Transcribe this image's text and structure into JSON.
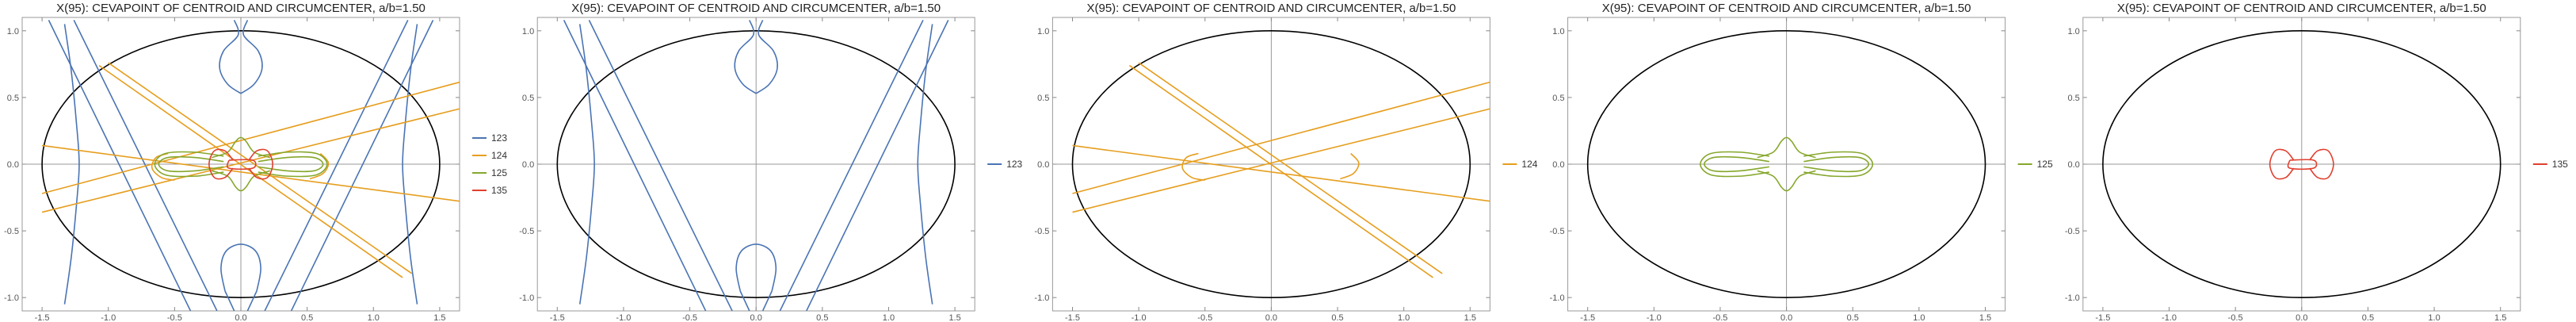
{
  "colors": {
    "123": "#4a74b4",
    "124": "#e69e1e",
    "125": "#86a72c",
    "135": "#e0402f",
    "ellipse": "#000000",
    "axis": "#999999"
  },
  "chart_data": [
    {
      "type": "line",
      "title": "X(95): CEVAPOINT OF CENTROID AND CIRCUMCENTER, a/b=1.50",
      "xlim": [
        -1.65,
        1.65
      ],
      "ylim": [
        -1.1,
        1.1
      ],
      "xticks": [
        "-1.5",
        "-1.0",
        "-0.5",
        "0.0",
        "0.5",
        "1.0",
        "1.5"
      ],
      "yticks": [
        "-1.0",
        "-0.5",
        "0.0",
        "0.5",
        "1.0"
      ],
      "ellipse": {
        "a": 1.5,
        "b": 1.0
      },
      "legend": [
        "123",
        "124",
        "125",
        "135"
      ],
      "show": [
        "123",
        "124",
        "125",
        "135"
      ]
    },
    {
      "type": "line",
      "title": "X(95): CEVAPOINT OF CENTROID AND CIRCUMCENTER, a/b=1.50",
      "xlim": [
        -1.65,
        1.65
      ],
      "ylim": [
        -1.1,
        1.1
      ],
      "xticks": [
        "-1.5",
        "-1.0",
        "-0.5",
        "0.0",
        "0.5",
        "1.0",
        "1.5"
      ],
      "yticks": [
        "-1.0",
        "-0.5",
        "0.0",
        "0.5",
        "1.0"
      ],
      "ellipse": {
        "a": 1.5,
        "b": 1.0
      },
      "legend": [
        "123"
      ],
      "show": [
        "123"
      ]
    },
    {
      "type": "line",
      "title": "X(95): CEVAPOINT OF CENTROID AND CIRCUMCENTER, a/b=1.50",
      "xlim": [
        -1.65,
        1.65
      ],
      "ylim": [
        -1.1,
        1.1
      ],
      "xticks": [
        "-1.5",
        "-1.0",
        "-0.5",
        "0.0",
        "0.5",
        "1.0",
        "1.5"
      ],
      "yticks": [
        "-1.0",
        "-0.5",
        "0.0",
        "0.5",
        "1.0"
      ],
      "ellipse": {
        "a": 1.5,
        "b": 1.0
      },
      "legend": [
        "124"
      ],
      "show": [
        "124"
      ]
    },
    {
      "type": "line",
      "title": "X(95): CEVAPOINT OF CENTROID AND CIRCUMCENTER, a/b=1.50",
      "xlim": [
        -1.65,
        1.65
      ],
      "ylim": [
        -1.1,
        1.1
      ],
      "xticks": [
        "-1.5",
        "-1.0",
        "-0.5",
        "0.0",
        "0.5",
        "1.0",
        "1.5"
      ],
      "yticks": [
        "-1.0",
        "-0.5",
        "0.0",
        "0.5",
        "1.0"
      ],
      "ellipse": {
        "a": 1.5,
        "b": 1.0
      },
      "legend": [
        "125"
      ],
      "show": [
        "125"
      ]
    },
    {
      "type": "line",
      "title": "X(95): CEVAPOINT OF CENTROID AND CIRCUMCENTER, a/b=1.50",
      "xlim": [
        -1.65,
        1.65
      ],
      "ylim": [
        -1.1,
        1.1
      ],
      "xticks": [
        "-1.5",
        "-1.0",
        "-0.5",
        "0.0",
        "0.5",
        "1.0",
        "1.5"
      ],
      "yticks": [
        "-1.0",
        "-0.5",
        "0.0",
        "0.5",
        "1.0"
      ],
      "ellipse": {
        "a": 1.5,
        "b": 1.0
      },
      "legend": [
        "135"
      ],
      "show": [
        "135"
      ]
    }
  ],
  "curves": {
    "123": [
      [
        [
          -1.33,
          -1.05
        ],
        [
          -1.28,
          -0.7
        ],
        [
          -1.24,
          -0.3
        ],
        [
          -1.22,
          0.0
        ],
        [
          -1.24,
          0.3
        ],
        [
          -1.28,
          0.7
        ],
        [
          -1.33,
          1.05
        ]
      ],
      [
        [
          1.33,
          -1.05
        ],
        [
          1.28,
          -0.7
        ],
        [
          1.24,
          -0.3
        ],
        [
          1.22,
          0.0
        ],
        [
          1.24,
          0.3
        ],
        [
          1.28,
          0.7
        ],
        [
          1.33,
          1.05
        ]
      ],
      [
        [
          -1.45,
          1.08
        ],
        [
          -0.38,
          -1.1
        ]
      ],
      [
        [
          -1.26,
          1.08
        ],
        [
          -0.18,
          -1.1
        ]
      ],
      [
        [
          1.45,
          1.08
        ],
        [
          0.38,
          -1.1
        ]
      ],
      [
        [
          1.26,
          1.08
        ],
        [
          0.18,
          -1.1
        ]
      ],
      [
        [
          0.0,
          0.53
        ],
        [
          -0.1,
          0.6
        ],
        [
          -0.16,
          0.72
        ],
        [
          -0.13,
          0.85
        ],
        [
          -0.02,
          0.97
        ],
        [
          -0.05,
          1.08
        ]
      ],
      [
        [
          0.0,
          0.53
        ],
        [
          0.1,
          0.6
        ],
        [
          0.16,
          0.72
        ],
        [
          0.13,
          0.85
        ],
        [
          0.02,
          0.97
        ],
        [
          0.05,
          1.08
        ]
      ],
      [
        [
          -0.12,
          -0.95
        ],
        [
          -0.15,
          -0.78
        ],
        [
          -0.11,
          -0.65
        ],
        [
          0.0,
          -0.6
        ],
        [
          0.11,
          -0.65
        ],
        [
          0.15,
          -0.78
        ],
        [
          0.12,
          -0.95
        ]
      ],
      [
        [
          -0.05,
          -1.1
        ],
        [
          -0.12,
          -0.95
        ]
      ],
      [
        [
          0.05,
          -1.1
        ],
        [
          0.12,
          -0.95
        ]
      ]
    ],
    "124": [
      [
        [
          -1.5,
          0.14
        ],
        [
          1.67,
          -0.28
        ]
      ],
      [
        [
          -1.5,
          -0.36
        ],
        [
          1.67,
          0.42
        ]
      ],
      [
        [
          -1.5,
          -0.22
        ],
        [
          1.67,
          0.62
        ]
      ],
      [
        [
          -1.07,
          0.74
        ],
        [
          1.22,
          -0.85
        ]
      ],
      [
        [
          -1.0,
          0.76
        ],
        [
          1.29,
          -0.82
        ]
      ],
      [
        [
          -0.55,
          0.08
        ],
        [
          -0.64,
          0.05
        ],
        [
          -0.67,
          -0.03
        ],
        [
          -0.6,
          -0.1
        ],
        [
          -0.5,
          -0.12
        ]
      ],
      [
        [
          0.6,
          0.08
        ],
        [
          0.66,
          0.01
        ],
        [
          0.62,
          -0.07
        ],
        [
          0.52,
          -0.11
        ]
      ]
    ],
    "125": [
      [
        [
          -0.13,
          0.02
        ],
        [
          -0.35,
          0.05
        ],
        [
          -0.55,
          0.05
        ],
        [
          -0.62,
          0.0
        ],
        [
          -0.55,
          -0.05
        ],
        [
          -0.35,
          -0.05
        ],
        [
          -0.13,
          -0.02
        ]
      ],
      [
        [
          0.13,
          0.02
        ],
        [
          0.35,
          0.05
        ],
        [
          0.55,
          0.05
        ],
        [
          0.62,
          0.0
        ],
        [
          0.55,
          -0.05
        ],
        [
          0.35,
          -0.05
        ],
        [
          0.13,
          -0.02
        ]
      ],
      [
        [
          -0.13,
          0.06
        ],
        [
          -0.35,
          0.09
        ],
        [
          -0.57,
          0.08
        ],
        [
          -0.65,
          0.0
        ],
        [
          -0.57,
          -0.08
        ],
        [
          -0.35,
          -0.09
        ],
        [
          -0.13,
          -0.06
        ]
      ],
      [
        [
          0.13,
          0.06
        ],
        [
          0.35,
          0.09
        ],
        [
          0.57,
          0.08
        ],
        [
          0.65,
          0.0
        ],
        [
          0.57,
          -0.08
        ],
        [
          0.35,
          -0.09
        ],
        [
          0.13,
          -0.06
        ]
      ],
      [
        [
          -0.22,
          0.05
        ],
        [
          -0.1,
          0.09
        ],
        [
          -0.04,
          0.17
        ],
        [
          0.0,
          0.2
        ],
        [
          0.04,
          0.17
        ],
        [
          0.1,
          0.09
        ],
        [
          0.22,
          0.05
        ]
      ],
      [
        [
          -0.22,
          -0.05
        ],
        [
          -0.1,
          -0.09
        ],
        [
          -0.04,
          -0.17
        ],
        [
          0.0,
          -0.2
        ],
        [
          0.04,
          -0.17
        ],
        [
          0.1,
          -0.09
        ],
        [
          0.22,
          -0.05
        ]
      ]
    ],
    "135": [
      [
        [
          -0.06,
          0.03
        ],
        [
          -0.12,
          0.1
        ],
        [
          -0.2,
          0.1
        ],
        [
          -0.24,
          0.0
        ],
        [
          -0.2,
          -0.1
        ],
        [
          -0.12,
          -0.1
        ],
        [
          -0.06,
          -0.03
        ]
      ],
      [
        [
          0.06,
          0.03
        ],
        [
          0.12,
          0.1
        ],
        [
          0.2,
          0.1
        ],
        [
          0.24,
          0.0
        ],
        [
          0.2,
          -0.1
        ],
        [
          0.12,
          -0.1
        ],
        [
          0.06,
          -0.03
        ]
      ],
      [
        [
          -0.09,
          0.03
        ],
        [
          0.09,
          0.03
        ],
        [
          0.09,
          -0.03
        ],
        [
          -0.09,
          -0.03
        ],
        [
          -0.09,
          0.03
        ]
      ]
    ]
  }
}
